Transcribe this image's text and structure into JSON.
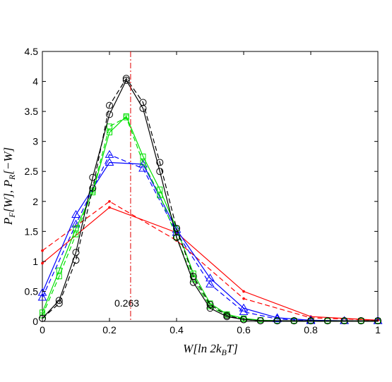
{
  "chart_data": {
    "type": "line",
    "xlabel": "W[ln 2k_BT]",
    "ylabel": "P_F[W], P_R[−W]",
    "xlim": [
      0,
      1
    ],
    "ylim": [
      0,
      4.5
    ],
    "x_ticks": [
      "0",
      "0.2",
      "0.4",
      "0.6",
      "0.8",
      "1"
    ],
    "y_ticks": [
      "0",
      "0.5",
      "1",
      "1.5",
      "2",
      "2.5",
      "3",
      "3.5",
      "4",
      "4.5"
    ],
    "grid": false,
    "vline": {
      "x": 0.263,
      "label": "0.263",
      "color": "#e00000",
      "style": "dash-dot"
    },
    "series": [
      {
        "color": "#ff0000",
        "marker": "dot",
        "style": "solid",
        "x": [
          0,
          0.2,
          0.4,
          0.6,
          0.8,
          1.0
        ],
        "y": [
          0.97,
          1.9,
          1.48,
          0.5,
          0.08,
          0.02
        ]
      },
      {
        "color": "#ff0000",
        "marker": "dot",
        "style": "dashed",
        "x": [
          0,
          0.2,
          0.4,
          0.6,
          0.8,
          1.0
        ],
        "y": [
          1.18,
          2.0,
          1.35,
          0.38,
          0.06,
          0.02
        ]
      },
      {
        "color": "#0000ff",
        "marker": "triangle",
        "style": "solid",
        "x": [
          0,
          0.1,
          0.2,
          0.3,
          0.4,
          0.5,
          0.6,
          0.7,
          0.8,
          0.9,
          1.0
        ],
        "y": [
          0.48,
          1.78,
          2.65,
          2.62,
          1.53,
          0.72,
          0.22,
          0.06,
          0.02,
          0.01,
          0.01
        ]
      },
      {
        "color": "#0000ff",
        "marker": "triangle",
        "style": "dashed",
        "x": [
          0,
          0.1,
          0.2,
          0.3,
          0.4,
          0.5,
          0.6,
          0.7,
          0.8,
          0.9,
          1.0
        ],
        "y": [
          0.4,
          1.62,
          2.78,
          2.55,
          1.48,
          0.62,
          0.16,
          0.04,
          0.01,
          0.01,
          0.01
        ]
      },
      {
        "color": "#00e000",
        "marker": "square",
        "style": "solid",
        "x": [
          0,
          0.05,
          0.1,
          0.15,
          0.2,
          0.25,
          0.3,
          0.35,
          0.4,
          0.45,
          0.5,
          0.55,
          0.6,
          0.65,
          0.7,
          0.75,
          0.8,
          0.85,
          0.9,
          0.95,
          1.0
        ],
        "y": [
          0.15,
          0.85,
          1.55,
          2.15,
          3.15,
          3.42,
          2.75,
          2.2,
          1.55,
          0.8,
          0.3,
          0.12,
          0.05,
          0.02,
          0.01,
          0.01,
          0.01,
          0.01,
          0.01,
          0.01,
          0.01
        ]
      },
      {
        "color": "#00e000",
        "marker": "square",
        "style": "dashed",
        "x": [
          0,
          0.05,
          0.1,
          0.15,
          0.2,
          0.25,
          0.3,
          0.35,
          0.4,
          0.45,
          0.5,
          0.55,
          0.6,
          0.65,
          0.7,
          0.75,
          0.8,
          0.85,
          0.9,
          0.95,
          1.0
        ],
        "y": [
          0.1,
          0.75,
          1.45,
          2.18,
          3.25,
          3.4,
          2.65,
          2.1,
          1.4,
          0.7,
          0.25,
          0.1,
          0.04,
          0.02,
          0.01,
          0.01,
          0.01,
          0.01,
          0.01,
          0.01,
          0.01
        ]
      },
      {
        "color": "#000000",
        "marker": "circle",
        "style": "solid",
        "x": [
          0,
          0.05,
          0.1,
          0.15,
          0.2,
          0.25,
          0.3,
          0.35,
          0.4,
          0.45,
          0.5,
          0.55,
          0.6,
          0.65,
          0.7,
          0.75,
          0.8,
          0.85,
          0.9,
          0.95,
          1.0
        ],
        "y": [
          0.05,
          0.35,
          1.15,
          2.4,
          3.45,
          4.02,
          3.55,
          2.5,
          1.4,
          0.65,
          0.22,
          0.08,
          0.03,
          0.01,
          0.01,
          0.01,
          0.01,
          0.01,
          0.01,
          0.01,
          0.01
        ]
      },
      {
        "color": "#000000",
        "marker": "circle",
        "style": "dashed",
        "x": [
          0,
          0.05,
          0.1,
          0.15,
          0.2,
          0.25,
          0.3,
          0.35,
          0.4,
          0.45,
          0.5,
          0.55,
          0.6,
          0.65,
          0.7,
          0.75,
          0.8,
          0.85,
          0.9,
          0.95,
          1.0
        ],
        "y": [
          0.05,
          0.3,
          1.02,
          2.22,
          3.6,
          4.05,
          3.65,
          2.65,
          1.55,
          0.75,
          0.28,
          0.1,
          0.03,
          0.01,
          0.01,
          0.01,
          0.01,
          0.01,
          0.01,
          0.01,
          0.01
        ]
      }
    ]
  }
}
